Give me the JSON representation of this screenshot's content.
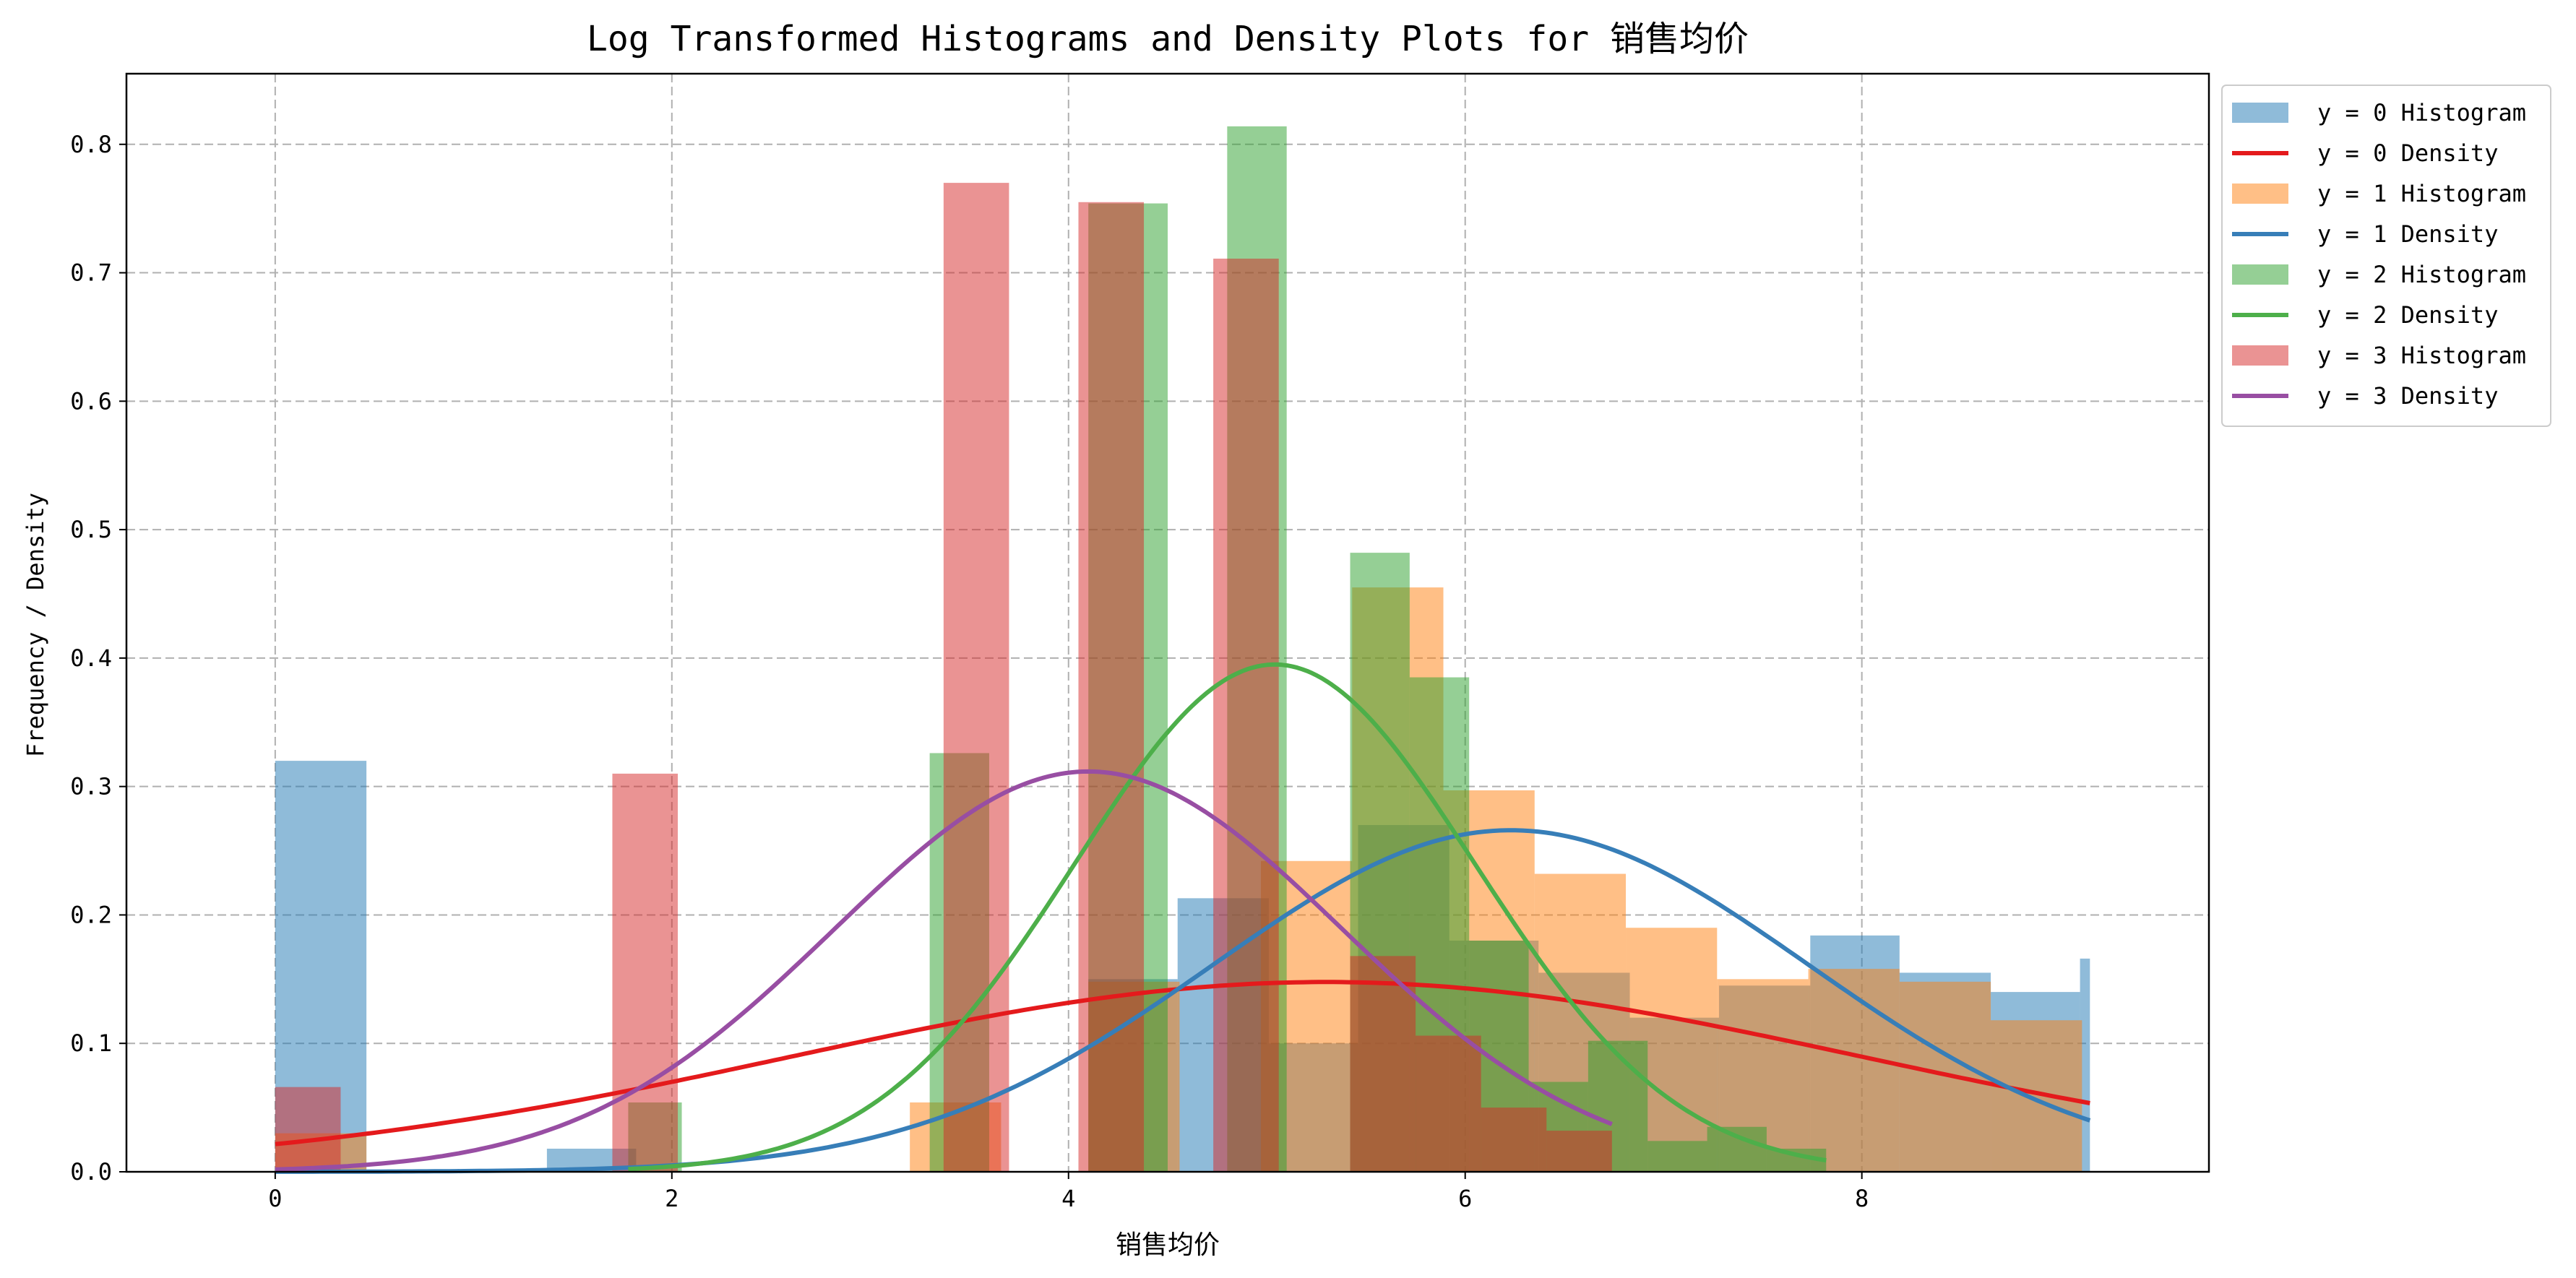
{
  "chart_data": {
    "type": "bar",
    "title": "Log Transformed Histograms and Density Plots for 销售均价",
    "xlabel": "销售均价",
    "ylabel": "Frequency / Density",
    "xlim": [
      -0.75,
      9.75
    ],
    "ylim": [
      0.0,
      0.855
    ],
    "grid": true,
    "grid_style": "dashed",
    "legend_position": "outside upper right",
    "xticks": [
      0,
      2,
      4,
      6,
      8
    ],
    "xtick_labels": [
      "0",
      "2",
      "4",
      "6",
      "8"
    ],
    "yticks": [
      0.0,
      0.1,
      0.2,
      0.3,
      0.4,
      0.5,
      0.6,
      0.7,
      0.8
    ],
    "ytick_labels": [
      "0.0",
      "0.1",
      "0.2",
      "0.3",
      "0.4",
      "0.5",
      "0.6",
      "0.7",
      "0.8"
    ],
    "legend": [
      {
        "label": "y = 0 Histogram",
        "kind": "patch",
        "color": "#1f77b4",
        "opacity": 0.5
      },
      {
        "label": "y = 0 Density",
        "kind": "line",
        "color": "#e41a1c"
      },
      {
        "label": "y = 1 Histogram",
        "kind": "patch",
        "color": "#ff7f0e",
        "opacity": 0.5
      },
      {
        "label": "y = 1 Density",
        "kind": "line",
        "color": "#377eb8"
      },
      {
        "label": "y = 2 Histogram",
        "kind": "patch",
        "color": "#2ca02c",
        "opacity": 0.5
      },
      {
        "label": "y = 2 Density",
        "kind": "line",
        "color": "#4daf4a"
      },
      {
        "label": "y = 3 Histogram",
        "kind": "patch",
        "color": "#d62728",
        "opacity": 0.5
      },
      {
        "label": "y = 3 Density",
        "kind": "line",
        "color": "#984ea3"
      }
    ],
    "histograms": [
      {
        "group": "y = 0",
        "color": "#1f77b4",
        "opacity": 0.5,
        "bins": [
          {
            "x0": 0.0,
            "x1": 0.46,
            "y": 0.32
          },
          {
            "x0": 0.46,
            "x1": 0.91,
            "y": 0.0
          },
          {
            "x0": 0.91,
            "x1": 1.37,
            "y": 0.0
          },
          {
            "x0": 1.37,
            "x1": 1.82,
            "y": 0.018
          },
          {
            "x0": 1.82,
            "x1": 2.28,
            "y": 0.0
          },
          {
            "x0": 2.28,
            "x1": 2.73,
            "y": 0.0
          },
          {
            "x0": 2.73,
            "x1": 3.19,
            "y": 0.0
          },
          {
            "x0": 3.19,
            "x1": 3.64,
            "y": 0.0
          },
          {
            "x0": 3.64,
            "x1": 4.1,
            "y": 0.0
          },
          {
            "x0": 4.1,
            "x1": 4.55,
            "y": 0.15
          },
          {
            "x0": 4.55,
            "x1": 5.01,
            "y": 0.213
          },
          {
            "x0": 5.01,
            "x1": 5.46,
            "y": 0.1
          },
          {
            "x0": 5.46,
            "x1": 5.92,
            "y": 0.27
          },
          {
            "x0": 5.92,
            "x1": 6.37,
            "y": 0.18
          },
          {
            "x0": 6.37,
            "x1": 6.83,
            "y": 0.155
          },
          {
            "x0": 6.83,
            "x1": 7.28,
            "y": 0.12
          },
          {
            "x0": 7.28,
            "x1": 7.74,
            "y": 0.145
          },
          {
            "x0": 7.74,
            "x1": 8.19,
            "y": 0.184
          },
          {
            "x0": 8.19,
            "x1": 8.65,
            "y": 0.155
          },
          {
            "x0": 8.65,
            "x1": 9.1,
            "y": 0.14
          },
          {
            "x0": 9.1,
            "x1": 9.15,
            "y": 0.166
          }
        ]
      },
      {
        "group": "y = 1",
        "color": "#ff7f0e",
        "opacity": 0.5,
        "bins": [
          {
            "x0": 0.0,
            "x1": 0.46,
            "y": 0.03
          },
          {
            "x0": 3.2,
            "x1": 3.66,
            "y": 0.054
          },
          {
            "x0": 4.1,
            "x1": 4.56,
            "y": 0.148
          },
          {
            "x0": 4.97,
            "x1": 5.43,
            "y": 0.242
          },
          {
            "x0": 5.43,
            "x1": 5.89,
            "y": 0.455
          },
          {
            "x0": 5.89,
            "x1": 6.35,
            "y": 0.297
          },
          {
            "x0": 6.35,
            "x1": 6.81,
            "y": 0.232
          },
          {
            "x0": 6.81,
            "x1": 7.27,
            "y": 0.19
          },
          {
            "x0": 7.27,
            "x1": 7.73,
            "y": 0.15
          },
          {
            "x0": 7.73,
            "x1": 8.19,
            "y": 0.158
          },
          {
            "x0": 8.19,
            "x1": 8.65,
            "y": 0.148
          },
          {
            "x0": 8.65,
            "x1": 9.11,
            "y": 0.118
          }
        ]
      },
      {
        "group": "y = 2",
        "color": "#2ca02c",
        "opacity": 0.5,
        "bins": [
          {
            "x0": 1.78,
            "x1": 2.05,
            "y": 0.054
          },
          {
            "x0": 3.3,
            "x1": 3.6,
            "y": 0.326
          },
          {
            "x0": 4.1,
            "x1": 4.5,
            "y": 0.754
          },
          {
            "x0": 4.8,
            "x1": 5.1,
            "y": 0.814
          },
          {
            "x0": 5.42,
            "x1": 5.72,
            "y": 0.482
          },
          {
            "x0": 5.72,
            "x1": 6.02,
            "y": 0.385
          },
          {
            "x0": 6.02,
            "x1": 6.32,
            "y": 0.18
          },
          {
            "x0": 6.32,
            "x1": 6.62,
            "y": 0.07
          },
          {
            "x0": 6.62,
            "x1": 6.92,
            "y": 0.102
          },
          {
            "x0": 6.92,
            "x1": 7.22,
            "y": 0.024
          },
          {
            "x0": 7.22,
            "x1": 7.52,
            "y": 0.035
          },
          {
            "x0": 7.52,
            "x1": 7.82,
            "y": 0.018
          }
        ]
      },
      {
        "group": "y = 3",
        "color": "#d62728",
        "opacity": 0.5,
        "bins": [
          {
            "x0": 0.0,
            "x1": 0.33,
            "y": 0.066
          },
          {
            "x0": 1.7,
            "x1": 2.03,
            "y": 0.31
          },
          {
            "x0": 3.37,
            "x1": 3.7,
            "y": 0.77
          },
          {
            "x0": 4.05,
            "x1": 4.38,
            "y": 0.755
          },
          {
            "x0": 4.73,
            "x1": 5.06,
            "y": 0.711
          },
          {
            "x0": 5.42,
            "x1": 5.75,
            "y": 0.168
          },
          {
            "x0": 5.75,
            "x1": 6.08,
            "y": 0.106
          },
          {
            "x0": 6.08,
            "x1": 6.41,
            "y": 0.05
          },
          {
            "x0": 6.41,
            "x1": 6.74,
            "y": 0.032
          }
        ]
      }
    ],
    "density_series": [
      {
        "group": "y = 0",
        "color": "#e41a1c",
        "kind": "normal",
        "mean": 5.3,
        "sd": 2.7,
        "x_range": [
          0.0,
          9.15
        ]
      },
      {
        "group": "y = 1",
        "color": "#377eb8",
        "kind": "normal",
        "mean": 6.23,
        "sd": 1.5,
        "x_range": [
          0.0,
          9.15
        ]
      },
      {
        "group": "y = 2",
        "color": "#4daf4a",
        "kind": "normal",
        "mean": 5.04,
        "sd": 1.01,
        "x_range": [
          1.78,
          7.82
        ]
      },
      {
        "group": "y = 3",
        "color": "#984ea3",
        "kind": "normal",
        "mean": 4.1,
        "sd": 1.28,
        "x_range": [
          0.0,
          6.74
        ]
      }
    ]
  }
}
